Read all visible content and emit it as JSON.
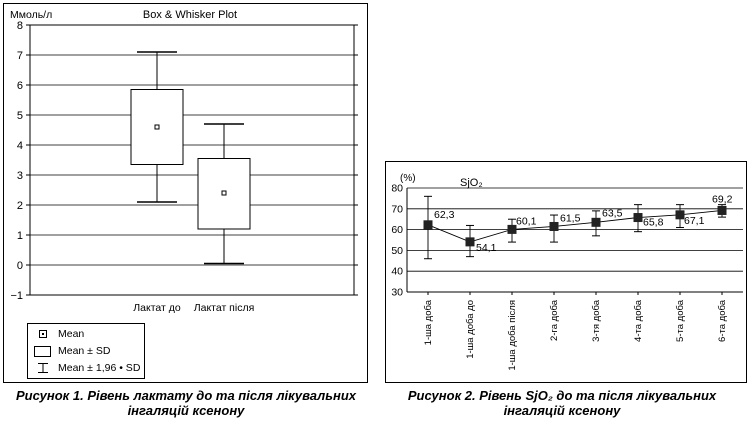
{
  "figure1": {
    "caption_line1": "Рисунок 1. Рівень лактату до та після лікувальних",
    "caption_line2": "інгаляцій ксенону",
    "chart_data": {
      "type": "boxplot",
      "title": "Box & Whisker Plot",
      "ylabel": "Ммоль/л",
      "ylim": [
        -1,
        8
      ],
      "yticks": [
        "8",
        "7",
        "6",
        "5",
        "4",
        "3",
        "2",
        "1",
        "0",
        "−1"
      ],
      "ytick_values": [
        8,
        7,
        6,
        5,
        4,
        3,
        2,
        1,
        0,
        -1
      ],
      "grid": true,
      "categories": [
        "Лактат до",
        "Лактат після"
      ],
      "series": [
        {
          "category": "Лактат до",
          "mean": 4.6,
          "sd_low": 3.35,
          "sd_high": 5.85,
          "ci_low": 2.1,
          "ci_high": 7.1
        },
        {
          "category": "Лактат після",
          "mean": 2.4,
          "sd_low": 1.2,
          "sd_high": 3.55,
          "ci_low": 0.05,
          "ci_high": 4.7
        }
      ],
      "legend": [
        "Mean",
        "Mean ± SD",
        "Mean ± 1,96 • SD"
      ]
    }
  },
  "figure2": {
    "caption_line1": "Рисунок 2. Рівень SjO₂ до та після лікувальних",
    "caption_line2": "інгаляцій ксенону",
    "chart_data": {
      "type": "line",
      "title": "SjO₂",
      "ylabel": "(%)",
      "ylim": [
        30,
        80
      ],
      "yticks": [
        "80",
        "70",
        "60",
        "50",
        "40",
        "30"
      ],
      "ytick_values": [
        80,
        70,
        60,
        50,
        40,
        30
      ],
      "grid": true,
      "categories": [
        "1-ша доба",
        "1-ша доба до",
        "1-ша доба після",
        "2-га доба",
        "3-тя доба",
        "4-та доба",
        "5-та доба",
        "6-та доба"
      ],
      "values": [
        62.3,
        54.1,
        60.1,
        61.5,
        63.5,
        65.8,
        67.1,
        69.2
      ],
      "data_labels": [
        "62,3",
        "54,1",
        "60,1",
        "61,5",
        "63,5",
        "65,8",
        "67,1",
        "69,2"
      ],
      "error_low": [
        46,
        47,
        54,
        54,
        57,
        59,
        61,
        66
      ],
      "error_high": [
        76,
        62,
        65,
        67,
        69,
        72,
        72,
        72
      ]
    }
  }
}
